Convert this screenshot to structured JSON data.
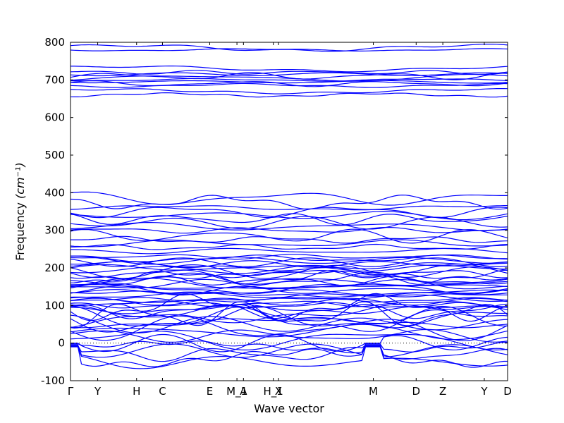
{
  "chart_data": {
    "type": "line",
    "xlabel": "Wave vector",
    "ylabel": "Frequency",
    "ylabel_unit": "(cm⁻¹)",
    "ylim": [
      -100,
      800
    ],
    "yticks": [
      -100,
      0,
      100,
      200,
      300,
      400,
      500,
      600,
      700,
      800
    ],
    "x_tick_labels": [
      "Γ",
      "Y",
      "H",
      "C",
      "E",
      "M_1",
      "A",
      "H_1",
      "X",
      "M",
      "D",
      "Z",
      "Y",
      "D"
    ],
    "x_tick_positions": [
      0,
      0.0622,
      0.1512,
      0.2104,
      0.3185,
      0.3808,
      0.3957,
      0.464,
      0.4759,
      0.6928,
      0.7908,
      0.8518,
      0.9467,
      1.0
    ],
    "grid": false,
    "zero_line": {
      "y": 0,
      "style": "dotted"
    },
    "line_color": "#0000ff",
    "band_groups": [
      {
        "name": "",
        "values": [
          -50,
          -40,
          -30,
          -20,
          -10,
          0,
          10,
          20,
          30,
          40,
          50,
          55,
          60,
          65,
          70,
          75,
          80,
          85,
          90,
          95,
          100,
          105,
          110,
          115,
          120,
          125,
          130,
          135,
          140,
          145,
          150,
          155,
          160,
          165,
          170,
          175,
          180,
          185,
          190,
          195,
          200,
          205,
          210,
          215,
          220,
          225,
          230,
          245,
          255,
          265,
          275,
          285,
          300,
          310,
          320,
          330,
          340,
          350,
          360,
          375,
          385
        ]
      },
      {
        "name": "",
        "values": [
          660,
          670,
          685,
          690,
          695,
          700,
          705,
          710,
          715,
          720,
          730,
          780,
          785
        ]
      }
    ]
  }
}
